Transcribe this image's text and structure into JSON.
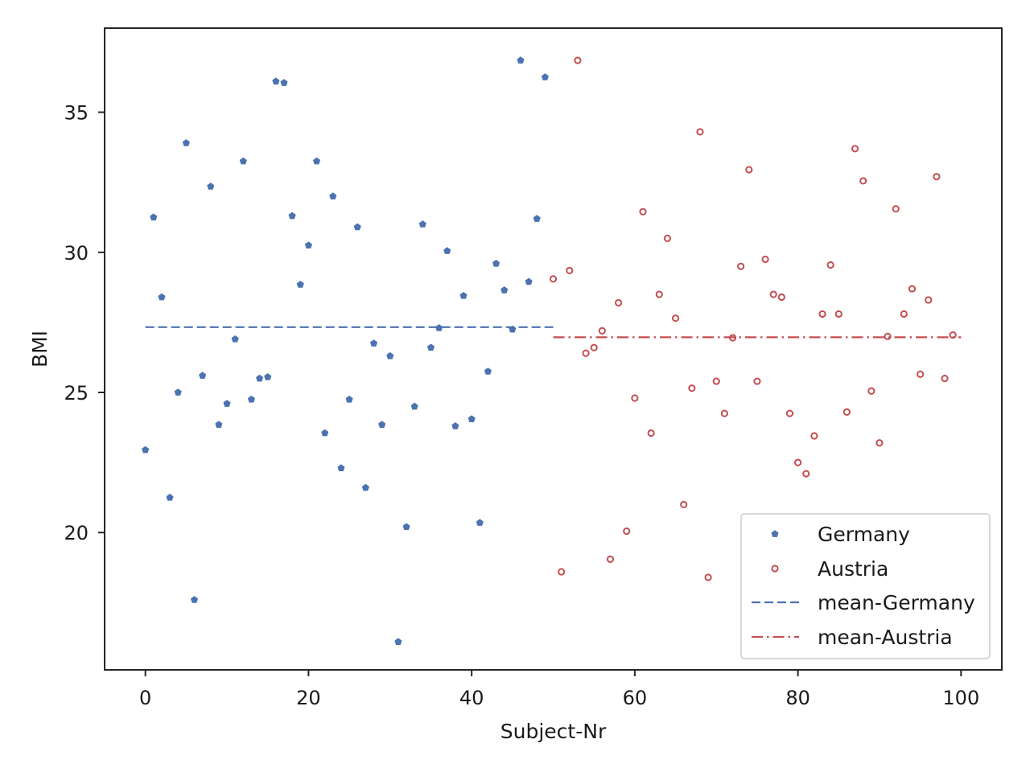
{
  "chart_data": {
    "type": "scatter",
    "xlabel": "Subject-Nr",
    "ylabel": "BMI",
    "xlim": [
      -5,
      105
    ],
    "ylim": [
      15.1,
      38.0
    ],
    "x_ticks": [
      0,
      20,
      40,
      60,
      80,
      100
    ],
    "y_ticks": [
      20,
      25,
      30,
      35
    ],
    "grid": false,
    "legend_position": "lower-right",
    "colors": {
      "germany": "#4c72b0",
      "austria": "#c44e52",
      "axis": "#262626",
      "text": "#1a1a1a"
    },
    "series": [
      {
        "name": "Germany",
        "kind": "points",
        "marker": "pentagon",
        "x": [
          0,
          1,
          2,
          3,
          4,
          5,
          6,
          7,
          8,
          9,
          10,
          11,
          12,
          13,
          14,
          15,
          16,
          17,
          18,
          19,
          20,
          21,
          22,
          23,
          24,
          25,
          26,
          27,
          28,
          29,
          30,
          31,
          32,
          33,
          34,
          35,
          36,
          37,
          38,
          39,
          40,
          41,
          42,
          43,
          44,
          45,
          46,
          47,
          48,
          49
        ],
        "y": [
          22.95,
          31.25,
          28.4,
          21.25,
          25.0,
          33.9,
          17.6,
          25.6,
          32.35,
          23.85,
          24.6,
          26.9,
          33.25,
          24.75,
          25.5,
          25.55,
          36.1,
          36.05,
          31.3,
          28.85,
          30.25,
          33.25,
          23.55,
          32.0,
          22.3,
          24.75,
          30.9,
          21.6,
          26.75,
          23.85,
          26.3,
          16.1,
          20.2,
          24.5,
          31.0,
          26.6,
          27.3,
          30.05,
          23.8,
          28.45,
          24.05,
          20.35,
          25.75,
          29.6,
          28.65,
          27.25,
          36.85,
          28.95,
          31.2,
          36.25
        ]
      },
      {
        "name": "Austria",
        "kind": "points",
        "marker": "circle",
        "x": [
          50,
          51,
          52,
          53,
          54,
          55,
          56,
          57,
          58,
          59,
          60,
          61,
          62,
          63,
          64,
          65,
          66,
          67,
          68,
          69,
          70,
          71,
          72,
          73,
          74,
          75,
          76,
          77,
          78,
          79,
          80,
          81,
          82,
          83,
          84,
          85,
          86,
          87,
          88,
          89,
          90,
          91,
          92,
          93,
          94,
          95,
          96,
          97,
          98,
          99
        ],
        "y": [
          29.05,
          18.6,
          29.35,
          36.85,
          26.4,
          26.6,
          27.2,
          19.05,
          28.2,
          20.05,
          24.8,
          31.45,
          23.55,
          28.5,
          30.5,
          27.65,
          21.0,
          25.15,
          34.3,
          18.4,
          25.4,
          24.25,
          26.95,
          29.5,
          32.95,
          25.4,
          29.75,
          28.5,
          28.4,
          24.25,
          22.5,
          22.1,
          23.45,
          27.8,
          29.55,
          27.8,
          24.3,
          33.7,
          32.55,
          25.05,
          23.2,
          27.0,
          31.55,
          27.8,
          28.7,
          25.65,
          28.3,
          32.7,
          25.5,
          27.05
        ]
      },
      {
        "name": "mean-Germany",
        "kind": "line",
        "dash": "dashed",
        "x": [
          0,
          50
        ],
        "y": [
          27.33,
          27.33
        ]
      },
      {
        "name": "mean-Austria",
        "kind": "line",
        "dash": "dashdot",
        "x": [
          50,
          100
        ],
        "y": [
          26.97,
          26.97
        ]
      }
    ]
  }
}
